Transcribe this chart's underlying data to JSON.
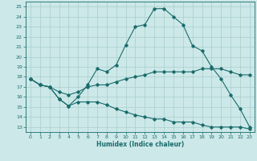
{
  "xlabel": "Humidex (Indice chaleur)",
  "xlim": [
    -0.5,
    23.5
  ],
  "ylim": [
    12.5,
    25.5
  ],
  "yticks": [
    13,
    14,
    15,
    16,
    17,
    18,
    19,
    20,
    21,
    22,
    23,
    24,
    25
  ],
  "xticks": [
    0,
    1,
    2,
    3,
    4,
    5,
    6,
    7,
    8,
    9,
    10,
    11,
    12,
    13,
    14,
    15,
    16,
    17,
    18,
    19,
    20,
    21,
    22,
    23
  ],
  "bg_color": "#cce8e8",
  "line_color": "#1a6b6b",
  "grid_color": "#aacece",
  "line1_x": [
    0,
    1,
    2,
    3,
    4,
    5,
    6,
    7,
    8,
    9,
    10,
    11,
    12,
    13,
    14,
    15,
    16,
    17,
    18,
    19,
    20,
    21,
    22,
    23
  ],
  "line1_y": [
    17.8,
    17.2,
    17.0,
    15.8,
    15.1,
    16.0,
    17.2,
    18.8,
    18.5,
    19.2,
    21.2,
    23.0,
    23.2,
    24.8,
    24.8,
    24.0,
    23.2,
    21.1,
    20.6,
    19.0,
    17.8,
    16.2,
    14.8,
    13.0
  ],
  "line2_x": [
    0,
    1,
    2,
    3,
    4,
    5,
    6,
    7,
    8,
    9,
    10,
    11,
    12,
    13,
    14,
    15,
    16,
    17,
    18,
    19,
    20,
    21,
    22,
    23
  ],
  "line2_y": [
    17.8,
    17.2,
    17.0,
    16.5,
    16.2,
    16.5,
    17.0,
    17.2,
    17.2,
    17.5,
    17.8,
    18.0,
    18.2,
    18.5,
    18.5,
    18.5,
    18.5,
    18.5,
    18.8,
    18.8,
    18.8,
    18.5,
    18.2,
    18.2
  ],
  "line3_x": [
    0,
    1,
    2,
    3,
    4,
    5,
    6,
    7,
    8,
    9,
    10,
    11,
    12,
    13,
    14,
    15,
    16,
    17,
    18,
    19,
    20,
    21,
    22,
    23
  ],
  "line3_y": [
    17.8,
    17.2,
    17.0,
    15.8,
    15.1,
    15.5,
    15.5,
    15.5,
    15.2,
    14.8,
    14.5,
    14.2,
    14.0,
    13.8,
    13.8,
    13.5,
    13.5,
    13.5,
    13.2,
    13.0,
    13.0,
    13.0,
    13.0,
    12.8
  ]
}
